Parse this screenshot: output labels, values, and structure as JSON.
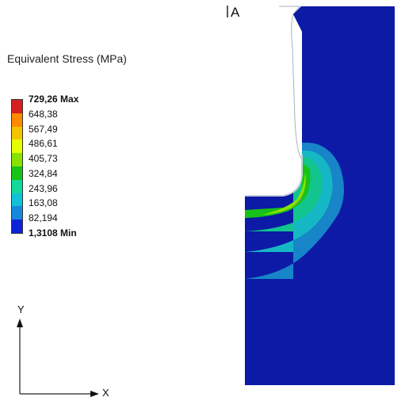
{
  "legend": {
    "title": "Equivalent Stress (MPa)",
    "colors": [
      "#d42020",
      "#ff8a00",
      "#f5c400",
      "#e6ff00",
      "#88e200",
      "#16c316",
      "#10d99a",
      "#10c2d8",
      "#1788dc",
      "#0c24d8"
    ],
    "labels": [
      {
        "text": "729,26 Max",
        "extreme": true
      },
      {
        "text": "648,38",
        "extreme": false
      },
      {
        "text": "567,49",
        "extreme": false
      },
      {
        "text": "486,61",
        "extreme": false
      },
      {
        "text": "405,73",
        "extreme": false
      },
      {
        "text": "324,84",
        "extreme": false
      },
      {
        "text": "243,96",
        "extreme": false
      },
      {
        "text": "163,08",
        "extreme": false
      },
      {
        "text": "82,194",
        "extreme": false
      },
      {
        "text": "1,3108 Min",
        "extreme": true
      }
    ]
  },
  "triad": {
    "y_label": "Y",
    "x_label": "X"
  },
  "probe": {
    "label": "A"
  },
  "model_colors": {
    "body": "#0c1aa6",
    "band_1": "#1785c8",
    "band_2": "#16b7c4",
    "band_3": "#12c48e",
    "band_4": "#16c316",
    "band_5": "#88e200",
    "hot": "#d97a1a",
    "edge": "#b8c2cf"
  }
}
